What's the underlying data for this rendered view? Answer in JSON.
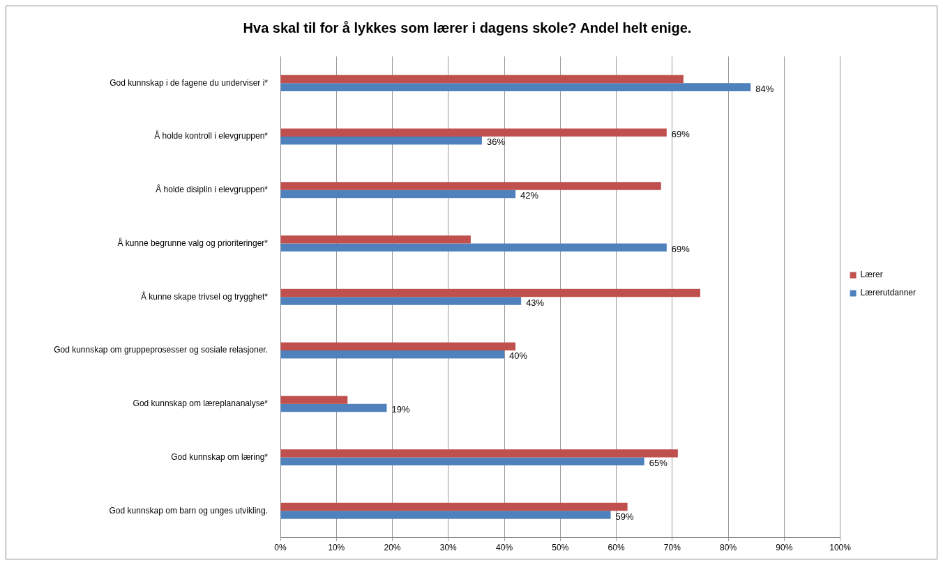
{
  "chart_data": {
    "type": "bar",
    "orientation": "horizontal",
    "title": "Hva skal til for å lykkes som lærer i dagens skole? Andel helt enige.",
    "categories": [
      "God kunnskap i de fagene du underviser i*",
      "Å holde kontroll i elevgruppen*",
      "Å holde disiplin i elevgruppen*",
      "Å kunne begrunne valg og prioriteringer*",
      "Å kunne skape trivsel og trygghet*",
      "God kunnskap om gruppeprosesser og sosiale relasjoner.",
      "God kunnskap om læreplananalyse*",
      "God kunnskap om læring*",
      "God kunnskap om barn og unges utvikling."
    ],
    "series": [
      {
        "name": "Lærer",
        "color": "#c0504d",
        "values": [
          72,
          69,
          68,
          34,
          75,
          42,
          12,
          71,
          62
        ],
        "value_labels": [
          null,
          "69%",
          null,
          null,
          null,
          null,
          null,
          null,
          null
        ]
      },
      {
        "name": "Lærerutdanner",
        "color": "#4f81bd",
        "values": [
          84,
          36,
          42,
          69,
          43,
          40,
          19,
          65,
          59
        ],
        "value_labels": [
          "84%",
          "36%",
          "42%",
          "69%",
          "43%",
          "40%",
          "19%",
          "65%",
          "59%"
        ]
      }
    ],
    "xlim": [
      0,
      100
    ],
    "xticks": [
      {
        "value": 0,
        "label": "0%"
      },
      {
        "value": 10,
        "label": "10%"
      },
      {
        "value": 20,
        "label": "20%"
      },
      {
        "value": 30,
        "label": "30%"
      },
      {
        "value": 40,
        "label": "40%"
      },
      {
        "value": 50,
        "label": "50%"
      },
      {
        "value": 60,
        "label": "60%"
      },
      {
        "value": 70,
        "label": "70%"
      },
      {
        "value": 80,
        "label": "80%"
      },
      {
        "value": 90,
        "label": "90%"
      },
      {
        "value": 100,
        "label": "100%"
      }
    ],
    "grid": "x",
    "legend": "right"
  }
}
